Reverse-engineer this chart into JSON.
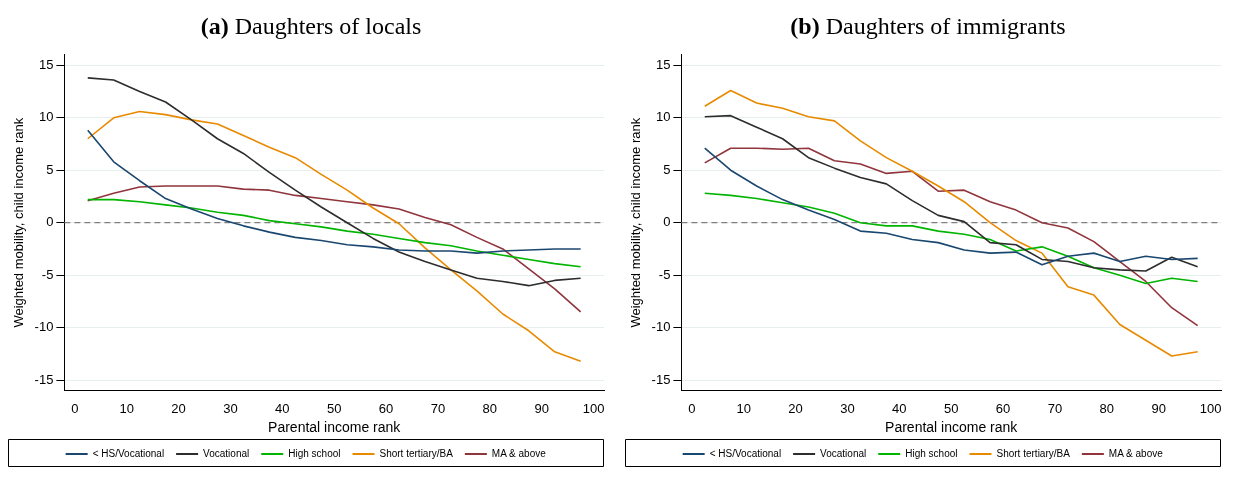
{
  "chart_data": [
    {
      "type": "line",
      "title": "(a) Daughters of locals",
      "xlabel": "Parental income rank",
      "ylabel": "Weighted mobility, child income rank",
      "x": [
        2.5,
        7.5,
        12.5,
        17.5,
        22.5,
        27.5,
        32.5,
        37.5,
        42.5,
        47.5,
        52.5,
        57.5,
        62.5,
        67.5,
        72.5,
        77.5,
        82.5,
        87.5,
        92.5,
        97.5
      ],
      "xlim": [
        -2,
        102
      ],
      "xticks": [
        0,
        10,
        20,
        30,
        40,
        50,
        60,
        70,
        80,
        90,
        100
      ],
      "ylim": [
        -16,
        16
      ],
      "yticks": [
        -15,
        -10,
        -5,
        0,
        5,
        10,
        15
      ],
      "grid": "y",
      "legend": "bottom",
      "marker": "none",
      "line_style": "solid",
      "ref_lines": [
        {
          "axis": "y",
          "value": 0,
          "color": "#7f7f7f",
          "line_style": "dashed"
        }
      ],
      "series": [
        {
          "name": "< HS/Vocational",
          "color": "#1a476f",
          "values": [
            8.8,
            5.8,
            4.0,
            2.3,
            1.3,
            0.4,
            -0.3,
            -0.9,
            -1.4,
            -1.7,
            -2.1,
            -2.3,
            -2.6,
            -2.7,
            -2.7,
            -2.9,
            -2.7,
            -2.6,
            -2.5,
            -2.5
          ]
        },
        {
          "name": "Vocational",
          "color": "#2d2d2d",
          "values": [
            13.8,
            13.6,
            12.5,
            11.5,
            9.8,
            8.0,
            6.6,
            4.8,
            3.1,
            1.5,
            0,
            -1.5,
            -2.8,
            -3.7,
            -4.5,
            -5.3,
            -5.6,
            -6.0,
            -5.5,
            -5.3
          ]
        },
        {
          "name": "High school",
          "color": "#00b400",
          "values": [
            2.2,
            2.2,
            2.0,
            1.7,
            1.4,
            1.0,
            0.7,
            0.2,
            -0.1,
            -0.4,
            -0.8,
            -1.1,
            -1.5,
            -1.9,
            -2.2,
            -2.7,
            -3.1,
            -3.5,
            -3.9,
            -4.2
          ]
        },
        {
          "name": "Short tertiary/BA",
          "color": "#e88a00",
          "values": [
            8.0,
            10.0,
            10.6,
            10.3,
            9.8,
            9.4,
            8.3,
            7.2,
            6.2,
            4.6,
            3.1,
            1.4,
            -0.1,
            -2.4,
            -4.5,
            -6.5,
            -8.7,
            -10.3,
            -12.3,
            -13.2
          ]
        },
        {
          "name": "MA & above",
          "color": "#90353b",
          "values": [
            2.1,
            2.8,
            3.4,
            3.5,
            3.5,
            3.5,
            3.2,
            3.1,
            2.6,
            2.3,
            2.0,
            1.7,
            1.3,
            0.5,
            -0.2,
            -1.4,
            -2.5,
            -4.4,
            -6.3,
            -8.5
          ]
        }
      ]
    },
    {
      "type": "line",
      "title": "(b) Daughters of immigrants",
      "xlabel": "Parental income rank",
      "ylabel": "Weighted mobility, child income rank",
      "x": [
        2.5,
        7.5,
        12.5,
        17.5,
        22.5,
        27.5,
        32.5,
        37.5,
        42.5,
        47.5,
        52.5,
        57.5,
        62.5,
        67.5,
        72.5,
        77.5,
        82.5,
        87.5,
        92.5,
        97.5
      ],
      "xlim": [
        -2,
        102
      ],
      "xticks": [
        0,
        10,
        20,
        30,
        40,
        50,
        60,
        70,
        80,
        90,
        100
      ],
      "ylim": [
        -16,
        16
      ],
      "yticks": [
        -15,
        -10,
        -5,
        0,
        5,
        10,
        15
      ],
      "grid": "y",
      "legend": "bottom",
      "marker": "none",
      "line_style": "solid",
      "ref_lines": [
        {
          "axis": "y",
          "value": 0,
          "color": "#7f7f7f",
          "line_style": "dashed"
        }
      ],
      "series": [
        {
          "name": "< HS/Vocational",
          "color": "#1a476f",
          "values": [
            7.1,
            5.0,
            3.5,
            2.2,
            1.2,
            0.3,
            -0.8,
            -1.0,
            -1.6,
            -1.9,
            -2.6,
            -2.9,
            -2.8,
            -4.0,
            -3.2,
            -2.9,
            -3.7,
            -3.2,
            -3.5,
            -3.4
          ]
        },
        {
          "name": "Vocational",
          "color": "#2d2d2d",
          "values": [
            10.1,
            10.2,
            9.1,
            8.0,
            6.2,
            5.2,
            4.3,
            3.7,
            2.1,
            0.7,
            0.1,
            -1.9,
            -2.1,
            -3.5,
            -3.7,
            -4.3,
            -4.5,
            -4.6,
            -3.3,
            -4.2
          ]
        },
        {
          "name": "High school",
          "color": "#00b400",
          "values": [
            2.8,
            2.6,
            2.3,
            1.9,
            1.5,
            0.9,
            0,
            -0.3,
            -0.3,
            -0.8,
            -1.1,
            -1.6,
            -2.7,
            -2.3,
            -3.2,
            -4.3,
            -5.0,
            -5.8,
            -5.3,
            -5.6
          ]
        },
        {
          "name": "Short tertiary/BA",
          "color": "#e88a00",
          "values": [
            11.1,
            12.6,
            11.4,
            10.9,
            10.1,
            9.7,
            7.8,
            6.2,
            4.9,
            3.5,
            2.0,
            0,
            -1.7,
            -2.9,
            -6.1,
            -6.9,
            -9.7,
            -11.2,
            -12.7,
            -12.3
          ]
        },
        {
          "name": "MA & above",
          "color": "#90353b",
          "values": [
            5.7,
            7.1,
            7.1,
            7.0,
            7.1,
            5.9,
            5.6,
            4.7,
            4.9,
            3.0,
            3.1,
            2.0,
            1.2,
            0,
            -0.5,
            -1.8,
            -3.7,
            -5.6,
            -8.1,
            -9.8
          ]
        }
      ]
    }
  ]
}
